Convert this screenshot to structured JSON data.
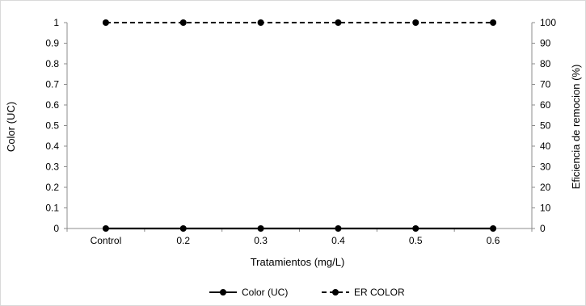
{
  "chart_data": {
    "type": "line",
    "categories": [
      "Control",
      "0.2",
      "0.3",
      "0.4",
      "0.5",
      "0.6"
    ],
    "series": [
      {
        "name": "Color (UC)",
        "axis": "left",
        "style": "solid",
        "color": "#000000",
        "values": [
          0,
          0,
          0,
          0,
          0,
          0
        ]
      },
      {
        "name": "ER COLOR",
        "axis": "right",
        "style": "dashed",
        "color": "#000000",
        "values": [
          100,
          100,
          100,
          100,
          100,
          100
        ]
      }
    ],
    "xlabel": "Tratamientos  (mg/L)",
    "ylabel": "Color  (UC)",
    "y2label": "Eficiencia de remocion  (%)",
    "ylim": [
      0,
      1
    ],
    "y2lim": [
      0,
      100
    ],
    "yticks": [
      "0",
      "0.1",
      "0.2",
      "0.3",
      "0.4",
      "0.5",
      "0.6",
      "0.7",
      "0.8",
      "0.9",
      "1"
    ],
    "y2ticks": [
      "0",
      "10",
      "20",
      "30",
      "40",
      "50",
      "60",
      "70",
      "80",
      "90",
      "100"
    ],
    "grid": false,
    "legend_position": "bottom"
  }
}
